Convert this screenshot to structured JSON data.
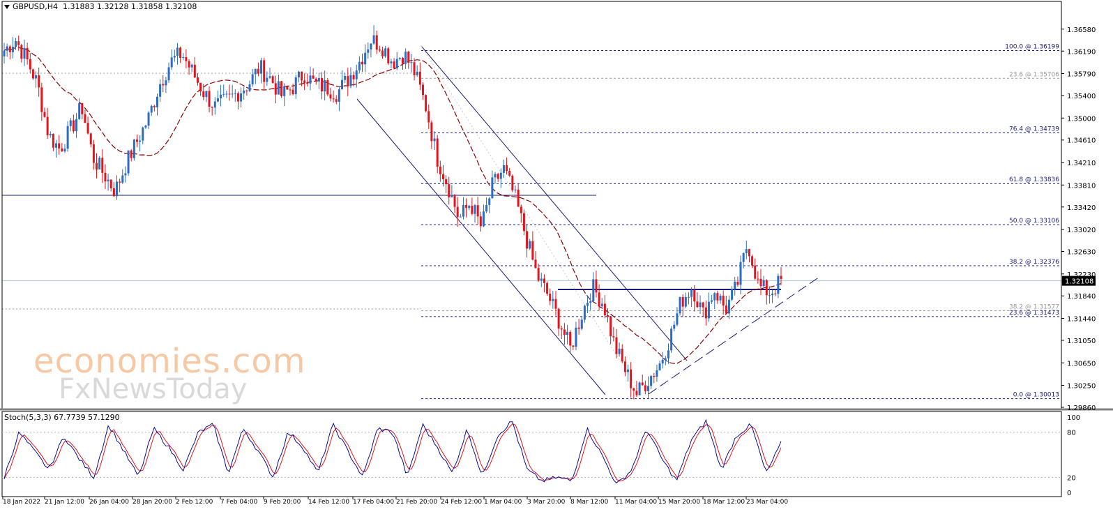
{
  "header": {
    "symbol": "GBPUSD,H4",
    "ohlc": "1.31883 1.32128 1.31858 1.32108"
  },
  "stoch": {
    "label": "Stoch(5,3,3) 67.7739 57.1290",
    "levels": [
      100,
      80,
      20,
      0
    ]
  },
  "watermark": {
    "line1": "economies.com",
    "line2": "FxNewsToday"
  },
  "colors": {
    "bull": "#2b6cc4",
    "bear": "#e3141b",
    "ma": "#8b0000",
    "lines": "#1a1a7a",
    "stoch_main": "#0a0a9a",
    "stoch_signal": "#e3141b",
    "current_price_bg": "#000000"
  },
  "chart_data": {
    "type": "candlestick",
    "symbol": "GBPUSD",
    "timeframe": "H4",
    "current_price": "1.32108",
    "y_ticks": [
      "1.36580",
      "1.36190",
      "1.35790",
      "1.35400",
      "1.35000",
      "1.34610",
      "1.34210",
      "1.33810",
      "1.33420",
      "1.33020",
      "1.32630",
      "1.32230",
      "1.31840",
      "1.31440",
      "1.31050",
      "1.30650",
      "1.30250",
      "1.29860"
    ],
    "ylim": [
      1.2986,
      1.3685
    ],
    "x_tick_labels": [
      "18 Jan 2022",
      "21 Jan 12:00",
      "26 Jan 04:00",
      "28 Jan 20:00",
      "2 Feb 12:00",
      "7 Feb 04:00",
      "9 Feb 20:00",
      "14 Feb 12:00",
      "17 Feb 04:00",
      "21 Feb 20:00",
      "24 Feb 12:00",
      "1 Mar 04:00",
      "3 Mar 20:00",
      "8 Mar 12:00",
      "11 Mar 04:00",
      "15 Mar 20:00",
      "18 Mar 12:00",
      "23 Mar 04:00"
    ],
    "fibonacci": [
      {
        "label": "100.0 @ 1.36199",
        "price": 1.36199,
        "color": "#1a1a7a"
      },
      {
        "label": "23.6 @ 1.35706",
        "price": 1.35706,
        "color": "#999999"
      },
      {
        "label": "76.4 @ 1.34739",
        "price": 1.34739,
        "color": "#1a1a7a"
      },
      {
        "label": "61.8 @ 1.33836",
        "price": 1.33836,
        "color": "#1a1a7a"
      },
      {
        "label": "50.0 @ 1.33106",
        "price": 1.33106,
        "color": "#1a1a7a"
      },
      {
        "label": "38.2 @ 1.32376",
        "price": 1.32376,
        "color": "#1a1a7a"
      },
      {
        "label": "38.2 @ 1.31577",
        "price": 1.31577,
        "color": "#999999"
      },
      {
        "label": "23.6 @ 1.31473",
        "price": 1.31473,
        "color": "#1a1a7a"
      },
      {
        "label": "0.0 @ 1.30013",
        "price": 1.30013,
        "color": "#1a1a7a"
      }
    ],
    "candles_anchor_close": [
      1.362,
      1.364,
      1.3605,
      1.356,
      1.347,
      1.3445,
      1.348,
      1.352,
      1.343,
      1.34,
      1.337,
      1.342,
      1.346,
      1.35,
      1.356,
      1.36,
      1.3615,
      1.358,
      1.3545,
      1.352,
      1.353,
      1.3545,
      1.356,
      1.359,
      1.357,
      1.354,
      1.3555,
      1.358,
      1.356,
      1.3555,
      1.3545,
      1.357,
      1.36,
      1.364,
      1.363,
      1.36,
      1.3615,
      1.358,
      1.352,
      1.343,
      1.338,
      1.332,
      1.335,
      1.3305,
      1.338,
      1.341,
      1.336,
      1.329,
      1.322,
      1.3185,
      1.314,
      1.309,
      1.315,
      1.32,
      1.317,
      1.3095,
      1.305,
      1.301,
      1.3035,
      1.306,
      1.311,
      1.3175,
      1.32,
      1.315,
      1.3195,
      1.316,
      1.32,
      1.328,
      1.32,
      1.319,
      1.321
    ],
    "stoch_main_anchor": [
      20,
      80,
      55,
      30,
      75,
      45,
      20,
      90,
      55,
      20,
      85,
      60,
      30,
      80,
      90,
      25,
      85,
      55,
      20,
      80,
      60,
      25,
      90,
      55,
      20,
      85,
      80,
      20,
      90,
      60,
      25,
      85,
      20,
      75,
      95,
      30,
      15,
      20,
      15,
      85,
      50,
      10,
      30,
      85,
      45,
      15,
      70,
      95,
      30,
      75,
      90,
      25,
      65
    ]
  }
}
